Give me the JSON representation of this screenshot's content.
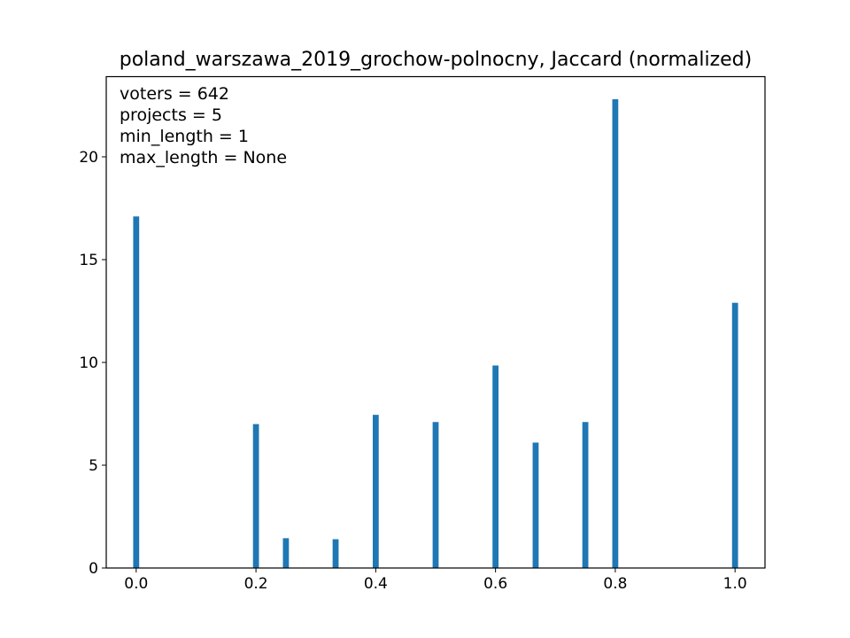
{
  "chart_data": {
    "type": "bar",
    "title": "poland_warszawa_2019_grochow-polnocny, Jaccard (normalized)",
    "xlabel": "",
    "ylabel": "",
    "xlim": [
      -0.05,
      1.05
    ],
    "ylim": [
      0,
      23.9
    ],
    "x_ticks": [
      "0.0",
      "0.2",
      "0.4",
      "0.6",
      "0.8",
      "1.0"
    ],
    "y_ticks": [
      "0",
      "5",
      "10",
      "15",
      "20"
    ],
    "bar_width": 0.01,
    "color": "#1f77b4",
    "grid": false,
    "annotations": [
      "voters = 642",
      "projects = 5",
      "min_length = 1",
      "max_length = None"
    ],
    "x": [
      0.0,
      0.2,
      0.25,
      0.333,
      0.4,
      0.5,
      0.6,
      0.667,
      0.75,
      0.8,
      1.0
    ],
    "values": [
      17.1,
      7.0,
      1.45,
      1.4,
      7.45,
      7.1,
      9.85,
      6.1,
      7.1,
      22.8,
      12.9
    ]
  }
}
